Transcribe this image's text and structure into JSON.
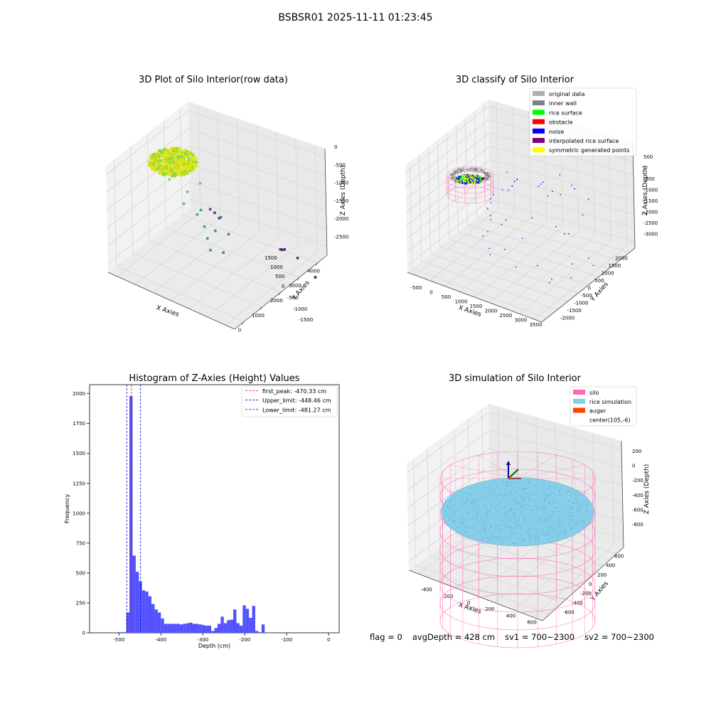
{
  "figure": {
    "suptitle": "BSBSR01 2025-11-11 01:23:45",
    "status": {
      "flag": "flag = 0",
      "avg_depth": "avgDepth = 428 cm",
      "sv1": "sv1 = 700~2300",
      "sv2": "sv2 = 700~2300"
    }
  },
  "colors": {
    "original": "#b0b0b0",
    "inner_wall": "#808080",
    "rice_surface": "#00ff00",
    "obstacle": "#ff0000",
    "noise": "#0000ff",
    "interpolated": "#800080",
    "symmetric": "#ffff00",
    "silo": "#ff69b4",
    "rice_sim": "#87ceeb",
    "auger": "#ff4500",
    "hist_bar": "#5252ff",
    "first_peak": "#ff0000",
    "limit": "#0000cc"
  },
  "chart_data": [
    {
      "type": "scatter",
      "title": "3D Plot of Silo Interior(row data)",
      "xlabel": "X Axies",
      "ylabel": "Y Axies",
      "zlabel": "Z Axies (Depth)",
      "x_ticks": [
        "0",
        "1000",
        "2000",
        "3000",
        "4000"
      ],
      "y_ticks": [
        "-1500",
        "-1000",
        "-500",
        "0",
        "500",
        "1000",
        "1500"
      ],
      "z_ticks": [
        "0",
        "-500",
        "-1000",
        "-1500",
        "-2000",
        "-2500"
      ],
      "points": [
        {
          "x": 3200,
          "y": -1600,
          "z": -2900
        },
        {
          "x": 3450,
          "y": -1100,
          "z": -2700
        },
        {
          "x": 3700,
          "y": -700,
          "z": -2750
        },
        {
          "x": 3700,
          "y": -650,
          "z": -2780
        },
        {
          "x": 3720,
          "y": -600,
          "z": -2800
        },
        {
          "x": 3850,
          "y": 800,
          "z": -2600
        },
        {
          "x": 3850,
          "y": 900,
          "z": -2500
        },
        {
          "x": 3860,
          "y": 1000,
          "z": -2450
        },
        {
          "x": 1100,
          "y": -200,
          "z": -1500
        },
        {
          "x": 1400,
          "y": 0,
          "z": -1400
        },
        {
          "x": 1700,
          "y": -100,
          "z": -1600
        },
        {
          "x": 1500,
          "y": 200,
          "z": -1200
        },
        {
          "x": 1900,
          "y": 300,
          "z": -1300
        },
        {
          "x": 1300,
          "y": 400,
          "z": -900
        },
        {
          "x": 1700,
          "y": 500,
          "z": -800
        },
        {
          "x": 2100,
          "y": 400,
          "z": -700
        },
        {
          "x": 1500,
          "y": 800,
          "z": -500
        },
        {
          "x": 2000,
          "y": 900,
          "z": -400
        },
        {
          "x": 2300,
          "y": 800,
          "z": -600
        },
        {
          "x": 1200,
          "y": -500,
          "z": -1800
        },
        {
          "x": 1900,
          "y": -300,
          "z": -1700
        },
        {
          "x": 2200,
          "y": 0,
          "z": -1500
        },
        {
          "x": 800,
          "y": -400,
          "z": -1600
        }
      ]
    },
    {
      "type": "scatter",
      "title": "3D classify of Silo Interior",
      "xlabel": "X Axies",
      "ylabel": "Y Axies",
      "zlabel": "Z Axies (Depth)",
      "x_ticks": [
        "-500",
        "0",
        "500",
        "1000",
        "1500",
        "2000",
        "2500",
        "3000",
        "3500"
      ],
      "y_ticks": [
        "-2000",
        "-1500",
        "-1000",
        "-500",
        "0",
        "500",
        "1000",
        "1500",
        "2000"
      ],
      "z_ticks": [
        "500",
        "0",
        "-500",
        "-1000",
        "-1500",
        "-2000",
        "-2500",
        "-3000"
      ],
      "legend": [
        "original data",
        "inner wall",
        "rice surface",
        "obstacle",
        "noise",
        "interpolated rice surface",
        "symmetric generated points"
      ],
      "legend_position": "top-right"
    },
    {
      "type": "bar",
      "title": "Histogram of Z-Axies (Height) Values",
      "xlabel": "Depth (cm)",
      "ylabel": "Frequency",
      "xlim": [
        -570,
        25
      ],
      "ylim": [
        0,
        2075
      ],
      "x_ticks": [
        -500,
        -400,
        -300,
        -200,
        -100,
        0
      ],
      "y_ticks": [
        0,
        250,
        500,
        750,
        1000,
        1250,
        1500,
        1750,
        2000
      ],
      "bin_start": -505,
      "bin_width": 7.5,
      "values": [
        5,
        5,
        5,
        170,
        1980,
        645,
        510,
        430,
        355,
        345,
        305,
        240,
        195,
        170,
        120,
        75,
        75,
        75,
        75,
        75,
        70,
        75,
        80,
        85,
        75,
        75,
        70,
        65,
        60,
        60,
        15,
        40,
        75,
        135,
        80,
        105,
        110,
        195,
        80,
        60,
        230,
        200,
        125,
        225,
        15,
        5,
        70
      ],
      "lines": [
        {
          "name": "first_peak: -470.33 cm",
          "x": -470.33,
          "style": "first_peak"
        },
        {
          "name": "Upper_limit: -448.46 cm",
          "x": -448.46,
          "style": "limit"
        },
        {
          "name": "Lower_limit: -481.27 cm",
          "x": -481.27,
          "style": "limit"
        }
      ],
      "legend_position": "top-right"
    },
    {
      "type": "scatter",
      "title": "3D simulation of Silo Interior",
      "xlabel": "X Axies",
      "ylabel": "Y Axies",
      "zlabel": "Z Axies (Depth)",
      "x_ticks": [
        "-400",
        "-200",
        "0",
        "200",
        "400",
        "600"
      ],
      "y_ticks": [
        "-600",
        "-400",
        "-200",
        "0",
        "200",
        "400",
        "600"
      ],
      "z_ticks": [
        "200",
        "0",
        "-200",
        "-400",
        "-600",
        "-800"
      ],
      "legend": [
        "silo",
        "rice simulation",
        "auger",
        "center(105,-6)"
      ],
      "legend_position": "top-right"
    }
  ]
}
